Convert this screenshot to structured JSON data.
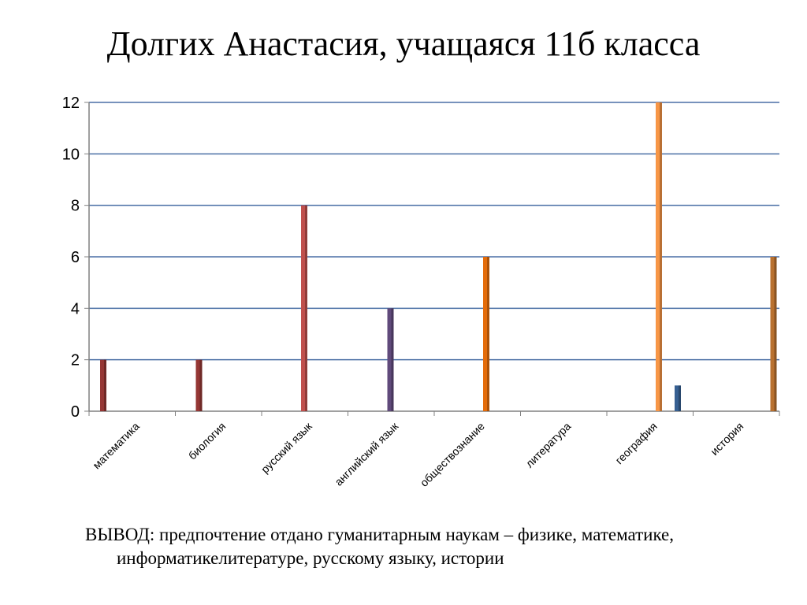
{
  "title": "Долгих Анастасия, учащаяся 11б класса",
  "conclusion": {
    "label": "ВЫВОД:",
    "text": "предпочтение отдано гуманитарным наукам – физике, математике, информатикелитературе, русскому языку, истории"
  },
  "chart_data": {
    "type": "bar",
    "categories": [
      "математика",
      "биология",
      "русский язык",
      "английский язык",
      "обществознание",
      "литература",
      "география",
      "история"
    ],
    "series": [
      {
        "values": [
          2,
          2,
          0,
          0,
          0,
          0,
          0,
          0
        ],
        "color": "#953735"
      },
      {
        "values": [
          0,
          0,
          8,
          0,
          0,
          0,
          0,
          0
        ],
        "color": "#c0504d"
      },
      {
        "values": [
          0,
          0,
          0,
          4,
          0,
          0,
          0,
          0
        ],
        "color": "#604a7b"
      },
      {
        "values": [
          0,
          0,
          0,
          0,
          6,
          0,
          0,
          0
        ],
        "color": "#e46c0a"
      },
      {
        "values": [
          0,
          0,
          0,
          0,
          0,
          0,
          12,
          0
        ],
        "color": "#f79646"
      },
      {
        "values": [
          0,
          0,
          0,
          0,
          0,
          0,
          1,
          0
        ],
        "color": "#376092"
      },
      {
        "values": [
          0,
          0,
          0,
          0,
          0,
          0,
          0,
          6
        ],
        "color": "#b9712f"
      }
    ],
    "ylim": [
      0,
      12
    ],
    "yticks": [
      0,
      2,
      4,
      6,
      8,
      10,
      12
    ],
    "grid": true,
    "gridColor": "#4a6fa5",
    "xlabel": "",
    "ylabel": ""
  }
}
